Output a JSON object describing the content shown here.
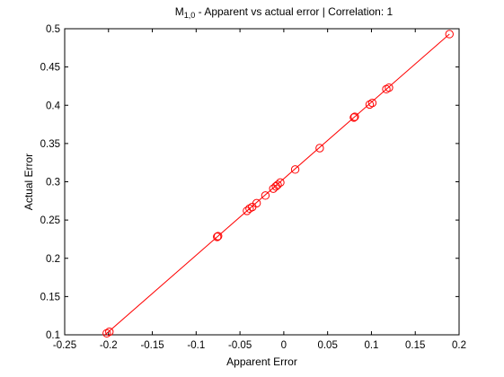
{
  "chart_data": {
    "type": "scatter",
    "title_main": "M",
    "title_sub": "1,0",
    "title_rest": " - Apparent vs actual error |  Correlation: 1",
    "xlabel": "Apparent Error",
    "ylabel": "Actual Error",
    "xlim": [
      -0.25,
      0.2
    ],
    "ylim": [
      0.1,
      0.5
    ],
    "xticks": [
      -0.25,
      -0.2,
      -0.15,
      -0.1,
      -0.05,
      0,
      0.05,
      0.1,
      0.15,
      0.2
    ],
    "xtick_labels": [
      "-0.25",
      "-0.2",
      "-0.15",
      "-0.1",
      "-0.05",
      "0",
      "0.05",
      "0.1",
      "0.15",
      "0.2"
    ],
    "yticks": [
      0.1,
      0.15,
      0.2,
      0.25,
      0.3,
      0.35,
      0.4,
      0.45,
      0.5
    ],
    "ytick_labels": [
      "0.1",
      "0.15",
      "0.2",
      "0.25",
      "0.3",
      "0.35",
      "0.4",
      "0.45",
      "0.5"
    ],
    "grid": false,
    "marker": "circle-open",
    "color": "#ff0000",
    "points": {
      "x": [
        -0.202,
        -0.199,
        -0.076,
        -0.075,
        -0.042,
        -0.039,
        -0.036,
        -0.031,
        -0.021,
        -0.012,
        -0.009,
        -0.007,
        -0.004,
        0.013,
        0.041,
        0.08,
        0.081,
        0.098,
        0.101,
        0.117,
        0.12,
        0.189
      ],
      "y": [
        0.102,
        0.104,
        0.228,
        0.229,
        0.262,
        0.265,
        0.267,
        0.272,
        0.282,
        0.291,
        0.294,
        0.296,
        0.299,
        0.316,
        0.344,
        0.384,
        0.385,
        0.401,
        0.403,
        0.421,
        0.423,
        0.493
      ]
    },
    "fit_line": {
      "x": [
        -0.204,
        0.189
      ],
      "y": [
        0.1,
        0.493
      ]
    }
  }
}
